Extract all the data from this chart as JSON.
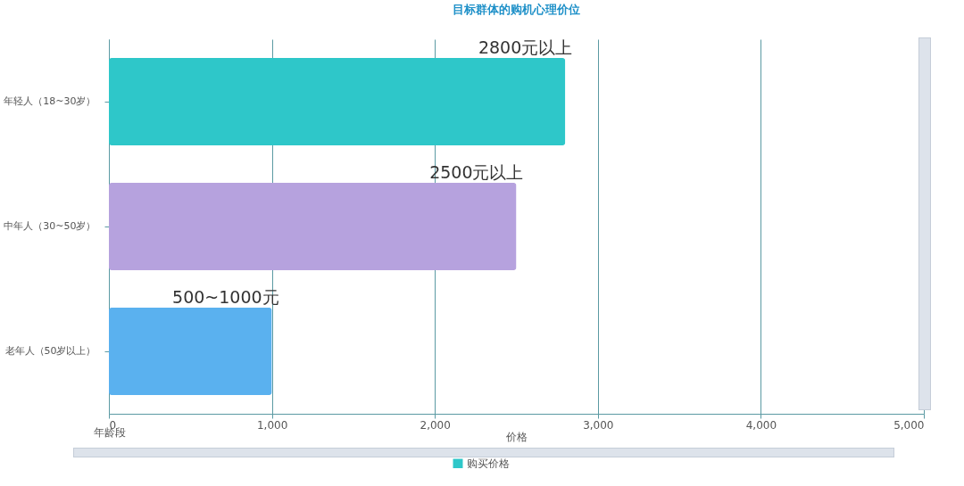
{
  "chart_data": {
    "type": "bar",
    "orientation": "horizontal",
    "title": "目标群体的购机心理价位",
    "xlabel": "价格",
    "ylabel": "年龄段",
    "categories": [
      "年轻人（18~30岁）",
      "中年人（30~50岁）",
      "老年人（50岁以上）"
    ],
    "series": [
      {
        "name": "购买价格",
        "values": [
          2800,
          2500,
          1000
        ],
        "value_labels": [
          "2800元以上",
          "2500元以上",
          "500~1000元"
        ]
      }
    ],
    "colors": [
      "#2ec7c9",
      "#b6a2de",
      "#5ab1ef"
    ],
    "xlim": [
      0,
      5000
    ],
    "xticks": [
      0,
      {
        "value": 1000,
        "label": "1,000"
      },
      {
        "value": 2000,
        "label": "2,000"
      },
      {
        "value": 3000,
        "label": "3,000"
      },
      {
        "value": 4000,
        "label": "4,000"
      },
      {
        "value": 5000,
        "label": "5,000"
      }
    ],
    "grid": "x",
    "legend": "bottom"
  }
}
